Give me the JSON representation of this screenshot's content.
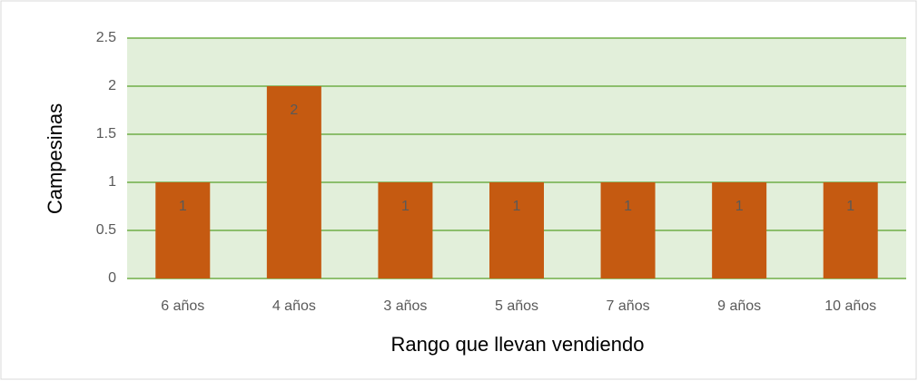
{
  "chart_data": {
    "type": "bar",
    "x_label": "Rango  que llevan vendiendo",
    "y_label": "Campesinas",
    "categories": [
      "6 años",
      "4 años",
      "3 años",
      "5 años",
      "7 años",
      "9 años",
      "10 años"
    ],
    "values": [
      1,
      2,
      1,
      1,
      1,
      1,
      1
    ],
    "color": "#c55a11",
    "ylim": [
      0,
      2.5
    ],
    "yticks": [
      0,
      0.5,
      1,
      1.5,
      2,
      2.5
    ],
    "grid": true
  }
}
